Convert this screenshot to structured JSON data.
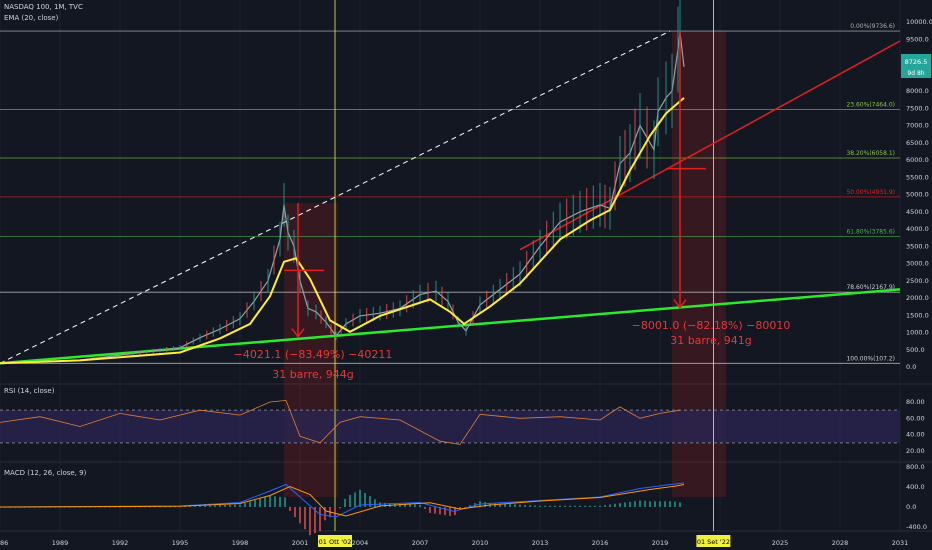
{
  "header": {
    "symbol": "NASDAQ 100, 1M, TVC",
    "ema": "EMA (20, close)",
    "rsi": "RSI (14, close)",
    "macd": "MACD (12, 26, close, 9)"
  },
  "price_tag": {
    "value": "8726.5",
    "time": "9d 8h"
  },
  "time_markers": [
    "01 Ott '02",
    "01 Set '22"
  ],
  "annotations": {
    "drop1_line1": "−4021.1 (−83.49%) −40211",
    "drop1_line2": "31 barre, 944g",
    "drop2_line1": "−8001.0 (−82.18%) −80010",
    "drop2_line2": "31 barre, 941g"
  },
  "colors": {
    "background": "#131722",
    "ema": "#ffeb3b",
    "trend_green": "#2ee82e",
    "trend_red": "#e02020",
    "rsi": "#e08030",
    "rsi_band": "#2a2450",
    "macd_line": "#2962ff",
    "signal_line": "#ff9800",
    "hist_pos": "#26a69a",
    "hist_neg": "#ef5350",
    "marker": "#f0f040"
  },
  "chart_data": [
    {
      "type": "line",
      "title": "NASDAQ 100, 1M, TVC",
      "x_ticks": [
        "1986",
        "1989",
        "1992",
        "1995",
        "1998",
        "2001",
        "2004",
        "2007",
        "2010",
        "2013",
        "2016",
        "2019",
        "2022",
        "2025",
        "2028",
        "2031"
      ],
      "y_ticks": [
        "0.0",
        "500.0",
        "1000.0",
        "1500.0",
        "2000.0",
        "2500.0",
        "3000.0",
        "3500.0",
        "4000.0",
        "4500.0",
        "5000.0",
        "5500.0",
        "6000.0",
        "6500.0",
        "7000.0",
        "7500.0",
        "8000.0",
        "8500.0",
        "9000.0",
        "9500.0",
        "10000.0"
      ],
      "ylim": [
        0,
        10000
      ],
      "xlim": [
        1986,
        2031
      ],
      "series": [
        {
          "name": "EMA (20, close)",
          "x": [
            1986,
            1990,
            1995,
            1997,
            1998.5,
            1999.5,
            2000.2,
            2000.8,
            2001.5,
            2002.5,
            2003.5,
            2005,
            2007.5,
            2008.5,
            2009.2,
            2010.5,
            2012,
            2014,
            2015.5,
            2016.5,
            2017.5,
            2018.5,
            2019.3,
            2019.8,
            2020.2
          ],
          "y": [
            110,
            190,
            420,
            830,
            1250,
            2050,
            3050,
            3150,
            2550,
            1350,
            1020,
            1480,
            1960,
            1600,
            1250,
            1750,
            2420,
            3700,
            4250,
            4550,
            5700,
            6700,
            7350,
            7600,
            7800
          ]
        },
        {
          "name": "NASDAQ 100",
          "x": [
            1986,
            1990,
            1995,
            1996,
            1997,
            1998,
            1998.7,
            1999.4,
            2000,
            2000.2,
            2000.4,
            2000.7,
            2001,
            2001.4,
            2001.8,
            2002.3,
            2002.8,
            2003.3,
            2004,
            2005,
            2006,
            2007,
            2007.8,
            2008.4,
            2008.9,
            2009.3,
            2010,
            2011,
            2012,
            2013,
            2014,
            2015,
            2016,
            2016.5,
            2017,
            2017.5,
            2018,
            2018.7,
            2018.9,
            2019.3,
            2019.6,
            2019.9,
            2020,
            2020.2
          ],
          "y": [
            110,
            200,
            560,
            850,
            1100,
            1400,
            1900,
            2500,
            3700,
            4700,
            3900,
            3500,
            2500,
            1700,
            1600,
            1300,
            900,
            1250,
            1480,
            1560,
            1700,
            2100,
            2200,
            1900,
            1300,
            1050,
            1800,
            2250,
            2700,
            3500,
            4200,
            4500,
            4700,
            4600,
            5900,
            6200,
            7000,
            6300,
            7400,
            7800,
            8000,
            9200,
            9700,
            8700
          ]
        },
        {
          "name": "Trend (green)",
          "x": [
            1986,
            2031
          ],
          "y": [
            107,
            2250
          ]
        },
        {
          "name": "Trend (red)",
          "x": [
            2012,
            2031
          ],
          "y": [
            3400,
            9450
          ]
        },
        {
          "name": "Trend (dashed)",
          "x": [
            1986,
            2019.5
          ],
          "y": [
            107,
            9736
          ]
        }
      ],
      "fib_levels": [
        {
          "label": "0.00%(9736.6)",
          "value": 9736.6
        },
        {
          "label": "23.60%(7464.0)",
          "value": 7464.0
        },
        {
          "label": "38.20%(6058.1)",
          "value": 6058.1
        },
        {
          "label": "50.00%(4931.9)",
          "value": 4931.9
        },
        {
          "label": "61.80%(3785.6)",
          "value": 3785.6
        },
        {
          "label": "78.60%(2167.9)",
          "value": 2167.9
        },
        {
          "label": "100.00%(107.2)",
          "value": 107.2
        }
      ],
      "drops": [
        {
          "x": 2000.9,
          "from": 4750,
          "to": 880,
          "cross": 2800
        },
        {
          "x": 2020.0,
          "from": 9736,
          "to": 1720,
          "cross": 5750
        }
      ]
    },
    {
      "type": "line",
      "title": "RSI (14, close)",
      "y_ticks": [
        "80.00",
        "60.00",
        "40.00",
        "20.00"
      ],
      "bands": [
        70,
        30
      ],
      "series": [
        {
          "name": "RSI (14, close)",
          "x": [
            1986,
            1988,
            1990,
            1992,
            1994,
            1996,
            1998,
            1999.5,
            2000.3,
            2001,
            2002,
            2003,
            2004,
            2006,
            2008,
            2009,
            2010,
            2012,
            2014,
            2016,
            2017,
            2018,
            2019,
            2020
          ],
          "y": [
            55,
            62,
            50,
            66,
            58,
            70,
            64,
            80,
            82,
            38,
            30,
            55,
            62,
            58,
            32,
            28,
            65,
            60,
            62,
            58,
            74,
            60,
            66,
            70
          ]
        }
      ]
    },
    {
      "type": "bar",
      "title": "MACD (12, 26, close, 9)",
      "y_ticks": [
        "800.0",
        "400.0",
        "0.0",
        "-400.0"
      ],
      "series": [
        {
          "name": "MACD",
          "x": [
            1986,
            1995,
            1998,
            1999.5,
            2000.3,
            2001,
            2002,
            2002.8,
            2004,
            2007,
            2008.7,
            2010,
            2013,
            2016,
            2018,
            2019.5,
            2020.2
          ],
          "y": [
            0,
            20,
            90,
            320,
            450,
            200,
            -150,
            -200,
            40,
            90,
            -90,
            60,
            130,
            200,
            370,
            450,
            480
          ]
        },
        {
          "name": "Signal",
          "x": [
            1986,
            1995,
            1998,
            1999.5,
            2000.5,
            2001.5,
            2002.3,
            2003.3,
            2005,
            2007.5,
            2009,
            2010.5,
            2013,
            2016,
            2018.5,
            2019.8,
            2020.2
          ],
          "y": [
            0,
            15,
            70,
            230,
            410,
            250,
            -80,
            -180,
            20,
            85,
            -40,
            40,
            120,
            190,
            350,
            420,
            450
          ]
        }
      ]
    }
  ]
}
